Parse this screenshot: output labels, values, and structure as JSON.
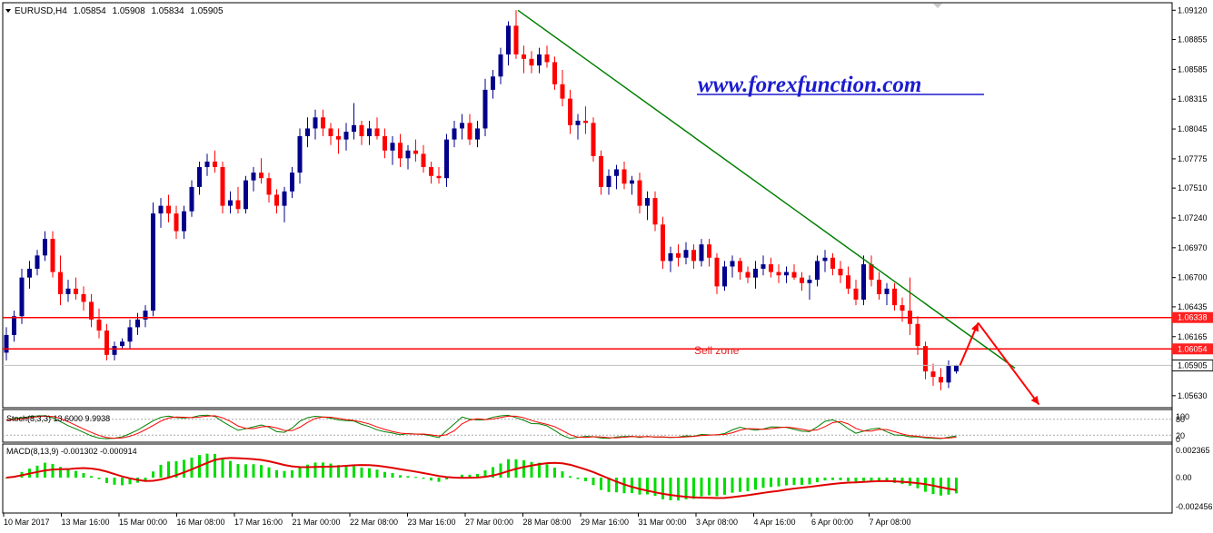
{
  "symbol_header": {
    "symbol": "EURUSD,H4",
    "open": "1.05854",
    "high": "1.05908",
    "low": "1.05834",
    "close": "1.05905"
  },
  "watermark": "www.forexfunction.com",
  "sell_zone_label": "Sell zone",
  "price_axis": {
    "ticks": [
      "1.09120",
      "1.08855",
      "1.08585",
      "1.08315",
      "1.08045",
      "1.07775",
      "1.07510",
      "1.07240",
      "1.06970",
      "1.06700",
      "1.06435",
      "1.06165",
      "1.05630"
    ],
    "tick_values": [
      1.0912,
      1.08855,
      1.08585,
      1.08315,
      1.08045,
      1.07775,
      1.0751,
      1.0724,
      1.0697,
      1.067,
      1.06435,
      1.06165,
      1.0563
    ],
    "markers": [
      {
        "label": "1.06338",
        "value": 1.06338,
        "color": "#ff2020"
      },
      {
        "label": "1.06054",
        "value": 1.06054,
        "color": "#ff2020"
      },
      {
        "label": "1.05905",
        "value": 1.05905,
        "color": "#ffffff"
      }
    ],
    "range": [
      1.0553,
      1.0918
    ]
  },
  "time_axis": [
    "10 Mar 2017",
    "13 Mar 16:00",
    "15 Mar 00:00",
    "16 Mar 08:00",
    "17 Mar 16:00",
    "21 Mar 00:00",
    "22 Mar 08:00",
    "23 Mar 16:00",
    "27 Mar 00:00",
    "28 Mar 08:00",
    "29 Mar 16:00",
    "31 Mar 00:00",
    "3 Apr 08:00",
    "4 Apr 16:00",
    "6 Apr 00:00",
    "7 Apr 08:00"
  ],
  "stoch": {
    "label": "Stoch(8,3,3) 13.6000 9.9938",
    "axis": [
      "100",
      "80",
      "20",
      "0"
    ]
  },
  "macd": {
    "label": "MACD(8,13,9) -0.001302 -0.000914",
    "axis": [
      "0.002365",
      "0.00",
      "-0.002456"
    ]
  },
  "colors": {
    "bull": "#00008b",
    "bear": "#ff0000",
    "trendline": "#008000",
    "resistance": "#ff0000",
    "watermark": "#1c1ccf",
    "stoch_main": "#008000",
    "stoch_signal": "#ff0000",
    "macd_hist": "#00dd00",
    "macd_signal": "#e00000"
  },
  "chart_data": {
    "type": "candlestick",
    "title": "EURUSD,H4",
    "series": [
      {
        "values": [
          [
            1.0602,
            1.0625,
            1.0595,
            1.0618
          ],
          [
            1.0618,
            1.064,
            1.0612,
            1.0635
          ],
          [
            1.0635,
            1.0678,
            1.0628,
            1.067
          ],
          [
            1.067,
            1.0685,
            1.066,
            1.0678
          ],
          [
            1.0678,
            1.0695,
            1.0672,
            1.069
          ],
          [
            1.069,
            1.0712,
            1.0685,
            1.0705
          ],
          [
            1.0705,
            1.0712,
            1.067,
            1.0675
          ],
          [
            1.0675,
            1.069,
            1.0645,
            1.0655
          ],
          [
            1.0655,
            1.0668,
            1.0648,
            1.066
          ],
          [
            1.066,
            1.067,
            1.065,
            1.0655
          ],
          [
            1.0655,
            1.0662,
            1.064,
            1.0648
          ],
          [
            1.0648,
            1.0655,
            1.0625,
            1.0632
          ],
          [
            1.0632,
            1.0642,
            1.0615,
            1.0622
          ],
          [
            1.0622,
            1.0628,
            1.0595,
            1.06
          ],
          [
            1.06,
            1.0612,
            1.0595,
            1.0608
          ],
          [
            1.0608,
            1.0615,
            1.0605,
            1.0612
          ],
          [
            1.0612,
            1.0632,
            1.0606,
            1.0625
          ],
          [
            1.0625,
            1.0638,
            1.0618,
            1.0632
          ],
          [
            1.0632,
            1.0645,
            1.0625,
            1.064
          ],
          [
            1.064,
            1.0738,
            1.0635,
            1.0728
          ],
          [
            1.0728,
            1.0742,
            1.0715,
            1.0735
          ],
          [
            1.0735,
            1.0745,
            1.072,
            1.0728
          ],
          [
            1.0728,
            1.0735,
            1.0705,
            1.0712
          ],
          [
            1.0712,
            1.0735,
            1.0705,
            1.073
          ],
          [
            1.073,
            1.0758,
            1.0725,
            1.0752
          ],
          [
            1.0752,
            1.0775,
            1.0745,
            1.077
          ],
          [
            1.077,
            1.0782,
            1.0762,
            1.0775
          ],
          [
            1.0775,
            1.0785,
            1.0765,
            1.077
          ],
          [
            1.077,
            1.0775,
            1.0728,
            1.0735
          ],
          [
            1.0735,
            1.0748,
            1.0728,
            1.074
          ],
          [
            1.074,
            1.0752,
            1.0728,
            1.0732
          ],
          [
            1.0732,
            1.0762,
            1.0728,
            1.0758
          ],
          [
            1.0758,
            1.077,
            1.0748,
            1.0765
          ],
          [
            1.0765,
            1.0778,
            1.0755,
            1.076
          ],
          [
            1.076,
            1.0765,
            1.0738,
            1.0745
          ],
          [
            1.0745,
            1.075,
            1.0728,
            1.0735
          ],
          [
            1.0735,
            1.0752,
            1.072,
            1.0748
          ],
          [
            1.0748,
            1.077,
            1.0742,
            1.0765
          ],
          [
            1.0765,
            1.0805,
            1.0755,
            1.0798
          ],
          [
            1.0798,
            1.0815,
            1.0788,
            1.0805
          ],
          [
            1.0805,
            1.0822,
            1.0795,
            1.0815
          ],
          [
            1.0815,
            1.0822,
            1.0798,
            1.0805
          ],
          [
            1.0805,
            1.081,
            1.079,
            1.0798
          ],
          [
            1.0798,
            1.0805,
            1.0782,
            1.0795
          ],
          [
            1.0795,
            1.081,
            1.0785,
            1.0802
          ],
          [
            1.0802,
            1.0828,
            1.0795,
            1.0808
          ],
          [
            1.0808,
            1.0812,
            1.079,
            1.0798
          ],
          [
            1.0798,
            1.0812,
            1.079,
            1.0805
          ],
          [
            1.0805,
            1.0815,
            1.0795,
            1.0798
          ],
          [
            1.0798,
            1.0805,
            1.0778,
            1.0785
          ],
          [
            1.0785,
            1.0798,
            1.0772,
            1.0792
          ],
          [
            1.0792,
            1.08,
            1.077,
            1.0778
          ],
          [
            1.0778,
            1.079,
            1.0768,
            1.0785
          ],
          [
            1.0785,
            1.0795,
            1.0775,
            1.0782
          ],
          [
            1.0782,
            1.079,
            1.0765,
            1.077
          ],
          [
            1.077,
            1.0775,
            1.0755,
            1.0762
          ],
          [
            1.0762,
            1.077,
            1.0755,
            1.076
          ],
          [
            1.076,
            1.08,
            1.0752,
            1.0795
          ],
          [
            1.0795,
            1.0812,
            1.0788,
            1.0805
          ],
          [
            1.0805,
            1.0818,
            1.0795,
            1.081
          ],
          [
            1.081,
            1.0818,
            1.079,
            1.0795
          ],
          [
            1.0795,
            1.0812,
            1.0788,
            1.0805
          ],
          [
            1.0805,
            1.085,
            1.0798,
            1.084
          ],
          [
            1.084,
            1.0858,
            1.0832,
            1.0852
          ],
          [
            1.0852,
            1.0878,
            1.0845,
            1.0872
          ],
          [
            1.0872,
            1.0902,
            1.0862,
            1.0898
          ],
          [
            1.0898,
            1.0912,
            1.0868,
            1.0872
          ],
          [
            1.0872,
            1.088,
            1.0855,
            1.0868
          ],
          [
            1.0868,
            1.0875,
            1.0855,
            1.0862
          ],
          [
            1.0862,
            1.0878,
            1.0855,
            1.0872
          ],
          [
            1.0872,
            1.088,
            1.086,
            1.0865
          ],
          [
            1.0865,
            1.087,
            1.084,
            1.0845
          ],
          [
            1.0845,
            1.0858,
            1.0825,
            1.0832
          ],
          [
            1.0832,
            1.084,
            1.08,
            1.0808
          ],
          [
            1.0808,
            1.0818,
            1.0795,
            1.0812
          ],
          [
            1.0812,
            1.0825,
            1.08,
            1.081
          ],
          [
            1.081,
            1.0815,
            1.0775,
            1.078
          ],
          [
            1.078,
            1.0785,
            1.0745,
            1.0752
          ],
          [
            1.0752,
            1.0768,
            1.0745,
            1.0762
          ],
          [
            1.0762,
            1.0772,
            1.075,
            1.0768
          ],
          [
            1.0768,
            1.0775,
            1.075,
            1.0755
          ],
          [
            1.0755,
            1.0762,
            1.0745,
            1.0758
          ],
          [
            1.0758,
            1.0765,
            1.0728,
            1.0735
          ],
          [
            1.0735,
            1.0748,
            1.0722,
            1.0742
          ],
          [
            1.0742,
            1.0748,
            1.0712,
            1.0718
          ],
          [
            1.0718,
            1.0725,
            1.0678,
            1.0685
          ],
          [
            1.0685,
            1.0698,
            1.0675,
            1.0692
          ],
          [
            1.0692,
            1.07,
            1.068,
            1.0688
          ],
          [
            1.0688,
            1.0702,
            1.0682,
            1.0695
          ],
          [
            1.0695,
            1.07,
            1.0678,
            1.0685
          ],
          [
            1.0685,
            1.0705,
            1.068,
            1.07
          ],
          [
            1.07,
            1.0705,
            1.068,
            1.0688
          ],
          [
            1.0688,
            1.0692,
            1.0655,
            1.0662
          ],
          [
            1.0662,
            1.0685,
            1.0658,
            1.068
          ],
          [
            1.068,
            1.069,
            1.067,
            1.0685
          ],
          [
            1.0685,
            1.0688,
            1.0668,
            1.0675
          ],
          [
            1.0675,
            1.068,
            1.0665,
            1.067
          ],
          [
            1.067,
            1.0685,
            1.066,
            1.0678
          ],
          [
            1.0678,
            1.069,
            1.0672,
            1.0682
          ],
          [
            1.0682,
            1.0688,
            1.067,
            1.0675
          ],
          [
            1.0675,
            1.0682,
            1.0665,
            1.0672
          ],
          [
            1.0672,
            1.068,
            1.0665,
            1.0675
          ],
          [
            1.0675,
            1.0682,
            1.0668,
            1.067
          ],
          [
            1.067,
            1.0675,
            1.0658,
            1.0665
          ],
          [
            1.0665,
            1.0672,
            1.065,
            1.0668
          ],
          [
            1.0668,
            1.069,
            1.0662,
            1.0685
          ],
          [
            1.0685,
            1.0695,
            1.0675,
            1.0688
          ],
          [
            1.0688,
            1.0692,
            1.0672,
            1.0678
          ],
          [
            1.0678,
            1.0685,
            1.0665,
            1.0672
          ],
          [
            1.0672,
            1.068,
            1.0655,
            1.066
          ],
          [
            1.066,
            1.0668,
            1.0645,
            1.065
          ],
          [
            1.065,
            1.069,
            1.0645,
            1.0682
          ],
          [
            1.0682,
            1.069,
            1.0662,
            1.0668
          ],
          [
            1.0668,
            1.0675,
            1.065,
            1.0655
          ],
          [
            1.0655,
            1.0665,
            1.0645,
            1.066
          ],
          [
            1.066,
            1.0665,
            1.064,
            1.0645
          ],
          [
            1.0645,
            1.0652,
            1.063,
            1.064
          ],
          [
            1.064,
            1.067,
            1.0618,
            1.0628
          ],
          [
            1.0628,
            1.0635,
            1.06,
            1.0608
          ],
          [
            1.0608,
            1.0612,
            1.0578,
            1.0585
          ],
          [
            1.0585,
            1.0592,
            1.0572,
            1.058
          ],
          [
            1.058,
            1.0588,
            1.0568,
            1.0575
          ],
          [
            1.0575,
            1.0595,
            1.057,
            1.059
          ],
          [
            1.0585,
            1.0591,
            1.0583,
            1.05905
          ]
        ]
      }
    ]
  }
}
